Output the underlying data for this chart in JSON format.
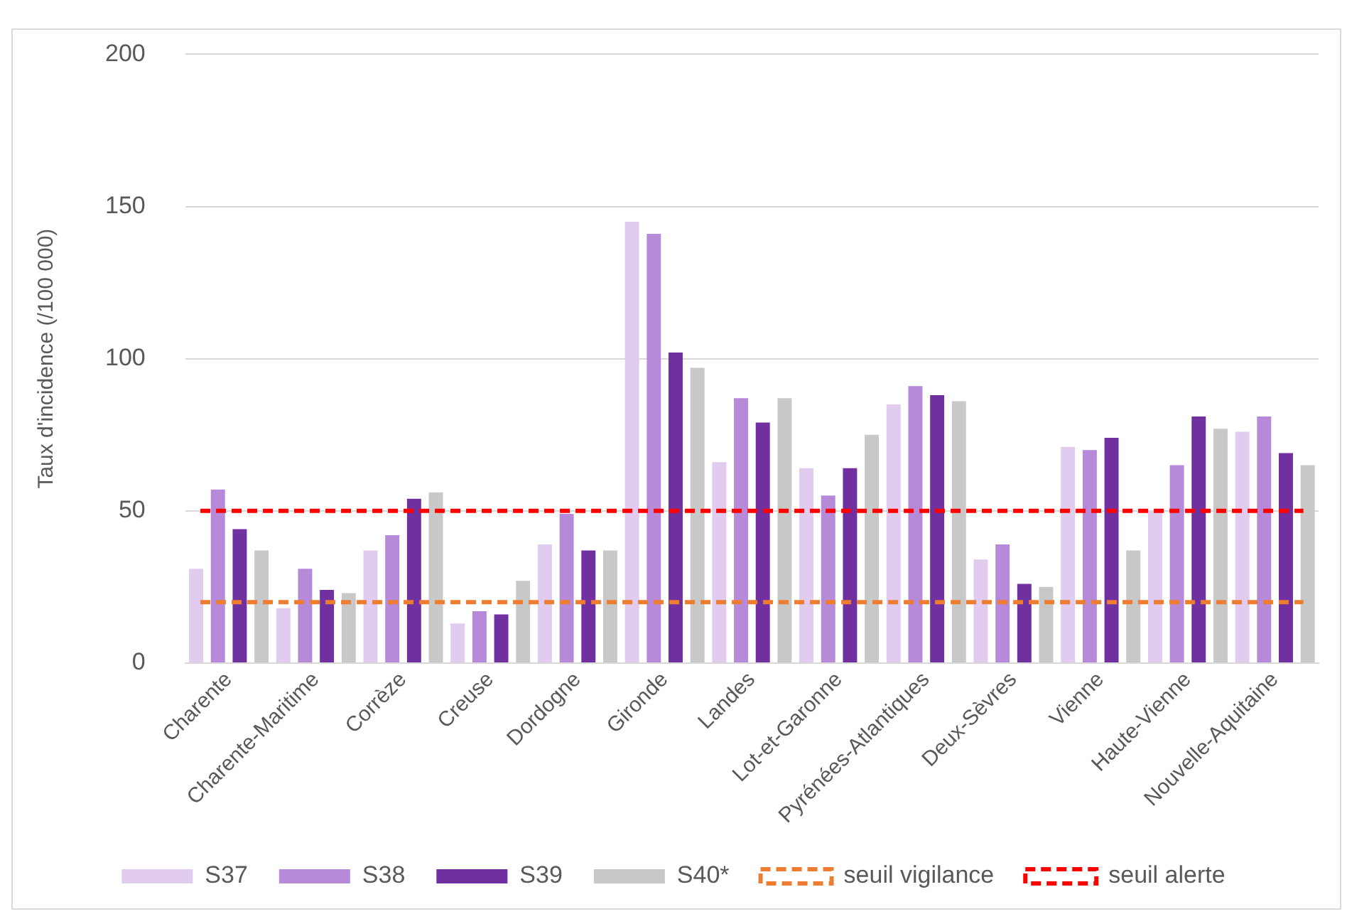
{
  "chart_data": {
    "type": "bar",
    "ylabel": "Taux d'incidence (/100 000)",
    "categories": [
      "Charente",
      "Charente-Maritime",
      "Corrèze",
      "Creuse",
      "Dordogne",
      "Gironde",
      "Landes",
      "Lot-et-Garonne",
      "Pyrénées-Atlantiques",
      "Deux-Sèvres",
      "Vienne",
      "Haute-Vienne",
      "Nouvelle-Aquitaine"
    ],
    "series": [
      {
        "name": "S37",
        "color": "#e1cbee",
        "values": [
          31,
          18,
          37,
          13,
          39,
          145,
          66,
          64,
          85,
          34,
          71,
          50,
          76
        ]
      },
      {
        "name": "S38",
        "color": "#b68ad9",
        "values": [
          57,
          31,
          42,
          17,
          49,
          141,
          87,
          55,
          91,
          39,
          70,
          65,
          81
        ]
      },
      {
        "name": "S39",
        "color": "#7030a0",
        "values": [
          44,
          24,
          54,
          16,
          37,
          102,
          79,
          64,
          88,
          26,
          74,
          81,
          69
        ]
      },
      {
        "name": "S40*",
        "color": "#c8c8c8",
        "values": [
          37,
          23,
          56,
          27,
          37,
          97,
          87,
          75,
          86,
          25,
          37,
          77,
          65
        ]
      }
    ],
    "ref_lines": [
      {
        "axis": "y",
        "value": 20,
        "label": "seuil vigilance",
        "color": "#ed7d31",
        "line_style": "dashed"
      },
      {
        "axis": "y",
        "value": 50,
        "label": "seuil alerte",
        "color": "#ff0000",
        "line_style": "dashed"
      }
    ],
    "ylim": [
      0,
      200
    ],
    "yticks": [
      0,
      50,
      100,
      150,
      200
    ],
    "grid": "y",
    "legend": "bottom"
  }
}
